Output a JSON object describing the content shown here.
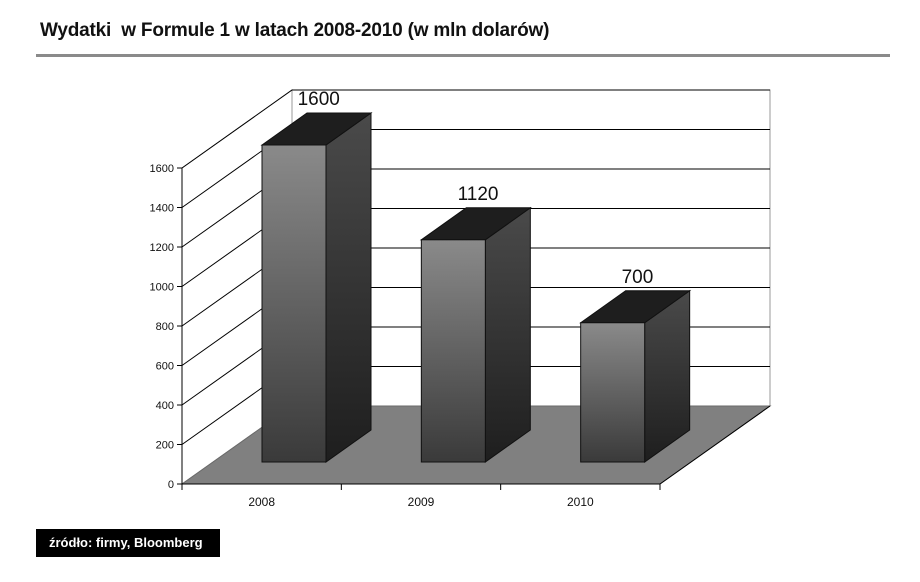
{
  "title": "Wydatki  w Formule 1 w latach 2008-2010 (w mln dolarów)",
  "source": "źródło: firmy, Bloomberg",
  "chart_data": {
    "type": "bar",
    "categories": [
      "2008",
      "2009",
      "2010"
    ],
    "values": [
      1600,
      1120,
      700
    ],
    "data_labels": [
      "1600",
      "1120",
      "700"
    ],
    "yticks": [
      0,
      200,
      400,
      600,
      800,
      1000,
      1200,
      1400,
      1600
    ],
    "ylim": [
      0,
      1600
    ],
    "grid": true,
    "style": "3d-column",
    "colors": {
      "bar_front": "#5a5a5a",
      "bar_side": "#333333",
      "bar_top": "#1e1e1e",
      "floor": "#808080"
    }
  }
}
